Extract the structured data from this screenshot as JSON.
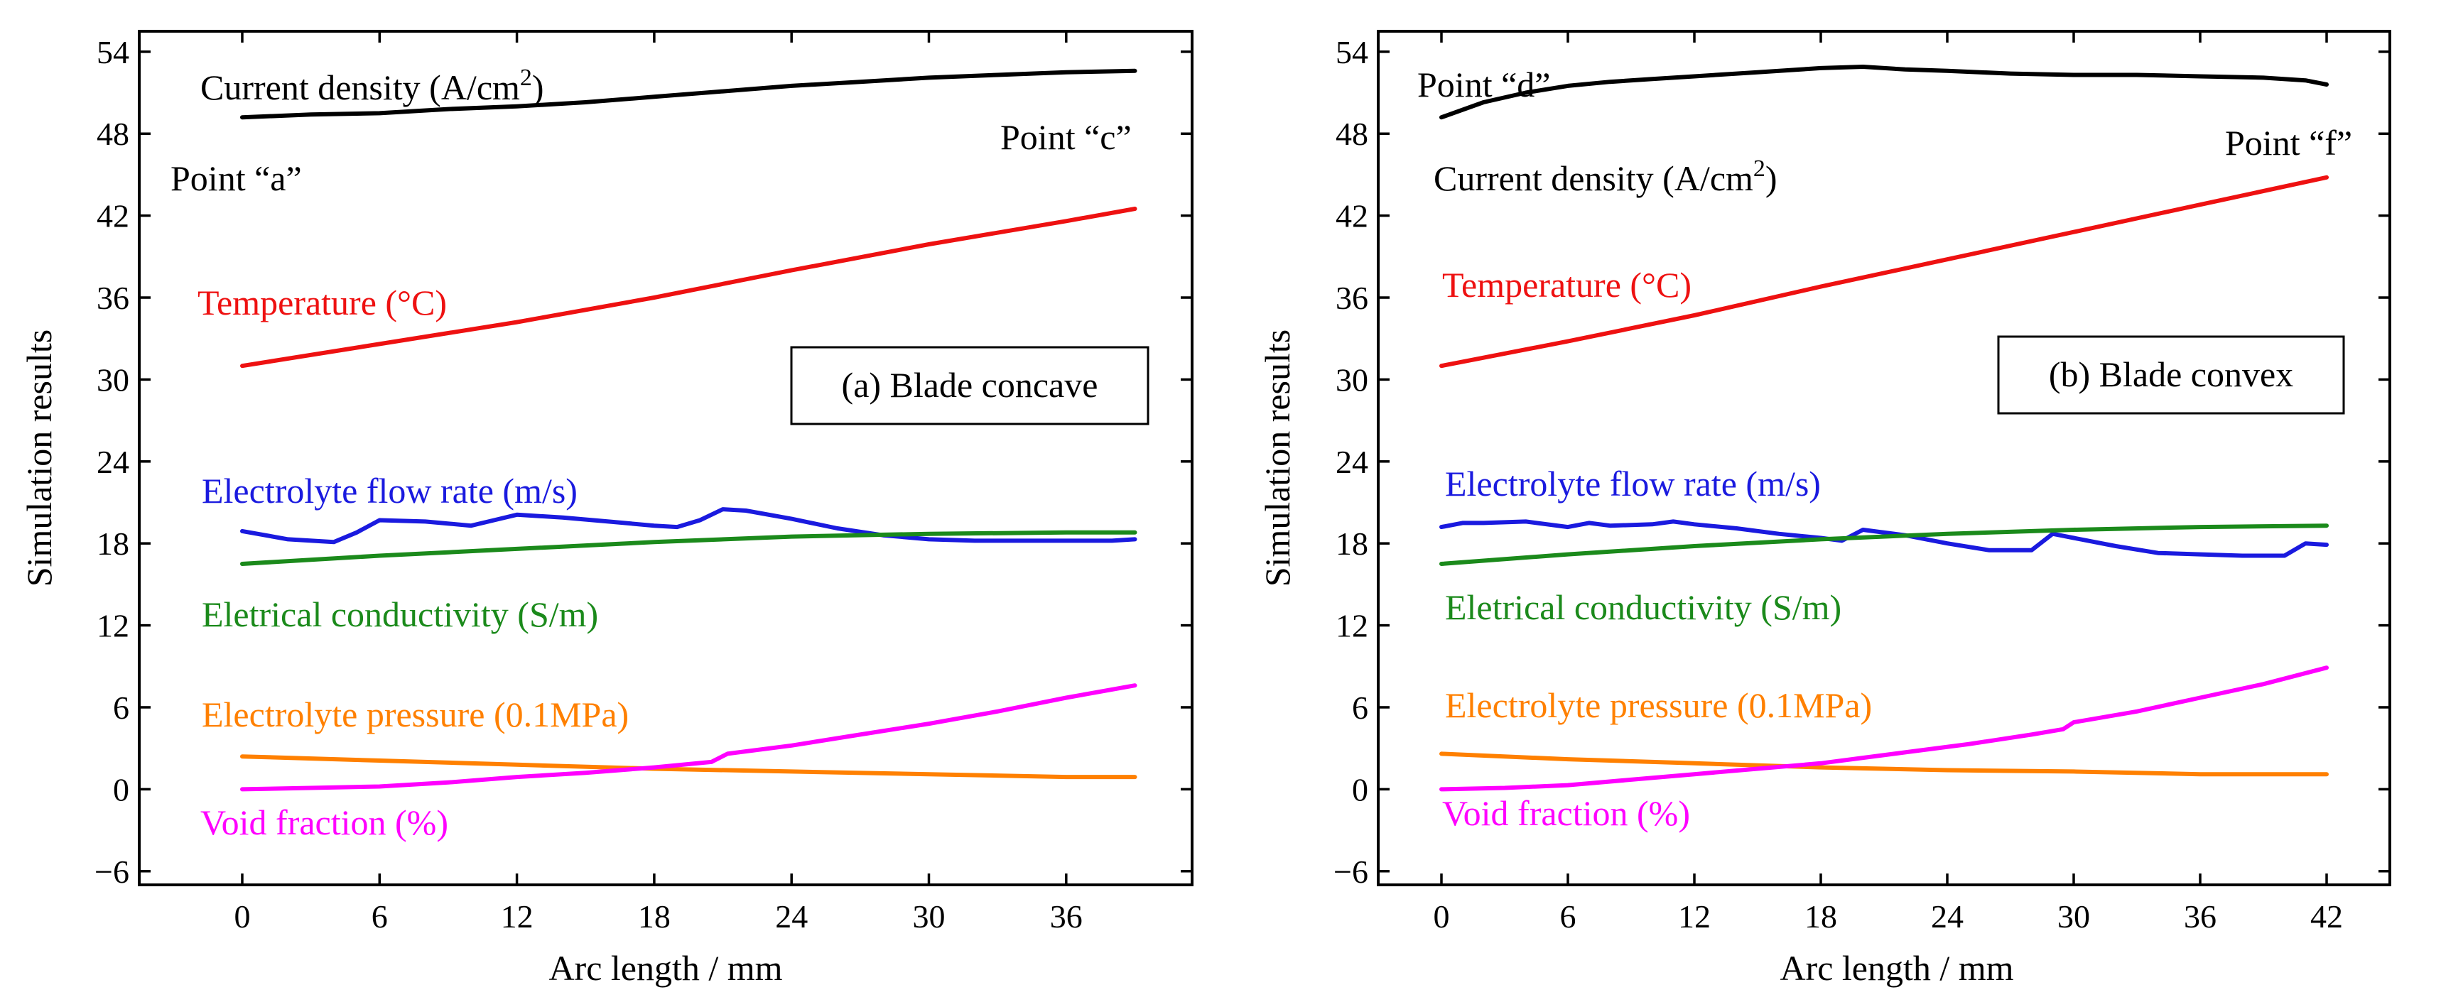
{
  "colors": {
    "current": "#000000",
    "temperature": "#ee1111",
    "flow": "#1a1adf",
    "conductivity": "#1b8a1b",
    "pressure": "#ff8000",
    "void": "#ff00ff"
  },
  "chart_data": [
    {
      "type": "line",
      "title": "(a) Blade concave",
      "xlabel": "Arc length / mm",
      "ylabel": "Simulation results",
      "xlim": [
        -4.5,
        41.5
      ],
      "ylim": [
        -7,
        55.5
      ],
      "xticks": [
        0,
        6,
        12,
        18,
        24,
        30,
        36
      ],
      "xtick_labels": [
        "0",
        "6",
        "12",
        "18",
        "24",
        "30",
        "36"
      ],
      "yticks": [
        -6,
        0,
        6,
        12,
        18,
        24,
        30,
        36,
        42,
        48,
        54
      ],
      "ytick_labels": [
        "−6",
        "0",
        "6",
        "12",
        "18",
        "24",
        "30",
        "36",
        "42",
        "48",
        "54"
      ],
      "grid": false,
      "series": [
        {
          "name": "Current density (A/cm2)",
          "color_key": "current",
          "x": [
            0,
            3,
            6,
            9,
            12,
            15,
            18,
            21,
            24,
            27,
            30,
            33,
            36,
            39
          ],
          "y": [
            49.2,
            49.4,
            49.5,
            49.8,
            50.0,
            50.3,
            50.7,
            51.1,
            51.5,
            51.8,
            52.1,
            52.3,
            52.5,
            52.6
          ]
        },
        {
          "name": "Temperature (°C)",
          "color_key": "temperature",
          "x": [
            0,
            6,
            12,
            18,
            24,
            30,
            36,
            39
          ],
          "y": [
            31.0,
            32.6,
            34.2,
            36.0,
            38.0,
            39.9,
            41.6,
            42.5
          ]
        },
        {
          "name": "Electrolyte flow rate (m/s)",
          "color_key": "flow",
          "x": [
            0,
            2,
            4,
            5,
            6,
            8,
            10,
            11,
            12,
            14,
            16,
            18,
            19,
            20,
            21,
            22,
            24,
            26,
            28,
            30,
            32,
            34,
            36,
            38,
            39
          ],
          "y": [
            18.9,
            18.3,
            18.1,
            18.8,
            19.7,
            19.6,
            19.3,
            19.7,
            20.1,
            19.9,
            19.6,
            19.3,
            19.2,
            19.7,
            20.5,
            20.4,
            19.8,
            19.1,
            18.6,
            18.3,
            18.2,
            18.2,
            18.2,
            18.2,
            18.3
          ]
        },
        {
          "name": "Eletrical conductivity (S/m)",
          "color_key": "conductivity",
          "x": [
            0,
            6,
            12,
            18,
            24,
            30,
            36,
            39
          ],
          "y": [
            16.5,
            17.1,
            17.6,
            18.1,
            18.5,
            18.7,
            18.8,
            18.8
          ]
        },
        {
          "name": "Electrolyte pressure (0.1MPa)",
          "color_key": "pressure",
          "x": [
            0,
            6,
            12,
            18,
            24,
            30,
            36,
            39
          ],
          "y": [
            2.4,
            2.1,
            1.8,
            1.5,
            1.3,
            1.1,
            0.9,
            0.9
          ]
        },
        {
          "name": "Void fraction (%)",
          "color_key": "void",
          "x": [
            0,
            3,
            6,
            9,
            12,
            15,
            18,
            20.5,
            21.2,
            24,
            27,
            30,
            33,
            36,
            39
          ],
          "y": [
            0.0,
            0.1,
            0.2,
            0.5,
            0.9,
            1.2,
            1.6,
            2.0,
            2.6,
            3.2,
            4.0,
            4.8,
            5.7,
            6.7,
            7.6
          ]
        }
      ],
      "annotations": {
        "current_label": "Current density (A/cm",
        "current_sup": "2",
        "current_close": ")",
        "point_start": "Point “a”",
        "point_end": "Point “c”",
        "temperature": "Temperature (°C)",
        "flow": "Electrolyte flow rate (m/s)",
        "conductivity": "Eletrical conductivity (S/m)",
        "pressure": "Electrolyte pressure (0.1MPa)",
        "void": "Void fraction (%)"
      }
    },
    {
      "type": "line",
      "title": "(b) Blade convex",
      "xlabel": "Arc length / mm",
      "ylabel": "Simulation results",
      "xlim": [
        -3.0,
        45.0
      ],
      "ylim": [
        -7,
        55.5
      ],
      "xticks": [
        0,
        6,
        12,
        18,
        24,
        30,
        36,
        42
      ],
      "xtick_labels": [
        "0",
        "6",
        "12",
        "18",
        "24",
        "30",
        "36",
        "42"
      ],
      "yticks": [
        -6,
        0,
        6,
        12,
        18,
        24,
        30,
        36,
        42,
        48,
        54
      ],
      "ytick_labels": [
        "−6",
        "0",
        "6",
        "12",
        "18",
        "24",
        "30",
        "36",
        "42",
        "48",
        "54"
      ],
      "grid": false,
      "series": [
        {
          "name": "Current density (A/cm2)",
          "color_key": "current",
          "x": [
            0,
            2,
            4,
            6,
            8,
            10,
            12,
            15,
            18,
            20,
            22,
            24,
            27,
            30,
            33,
            36,
            39,
            41,
            42
          ],
          "y": [
            49.2,
            50.3,
            51.0,
            51.5,
            51.8,
            52.0,
            52.2,
            52.5,
            52.8,
            52.9,
            52.7,
            52.6,
            52.4,
            52.3,
            52.3,
            52.2,
            52.1,
            51.9,
            51.6
          ]
        },
        {
          "name": "Temperature (°C)",
          "color_key": "temperature",
          "x": [
            0,
            6,
            12,
            18,
            24,
            30,
            36,
            42
          ],
          "y": [
            31.0,
            32.8,
            34.7,
            36.8,
            38.8,
            40.8,
            42.8,
            44.8
          ]
        },
        {
          "name": "Electrolyte flow rate (m/s)",
          "color_key": "flow",
          "x": [
            0,
            1,
            2,
            4,
            6,
            7,
            8,
            10,
            11,
            12,
            14,
            16,
            18,
            19,
            20,
            22,
            24,
            26,
            28,
            29,
            30,
            32,
            34,
            36,
            38,
            40,
            41,
            42
          ],
          "y": [
            19.2,
            19.5,
            19.5,
            19.6,
            19.2,
            19.5,
            19.3,
            19.4,
            19.6,
            19.4,
            19.1,
            18.7,
            18.4,
            18.2,
            19.0,
            18.6,
            18.0,
            17.5,
            17.5,
            18.7,
            18.4,
            17.8,
            17.3,
            17.2,
            17.1,
            17.1,
            18.0,
            17.9
          ]
        },
        {
          "name": "Eletrical conductivity (S/m)",
          "color_key": "conductivity",
          "x": [
            0,
            6,
            12,
            18,
            24,
            30,
            36,
            42
          ],
          "y": [
            16.5,
            17.2,
            17.8,
            18.3,
            18.7,
            19.0,
            19.2,
            19.3
          ]
        },
        {
          "name": "Electrolyte pressure (0.1MPa)",
          "color_key": "pressure",
          "x": [
            0,
            6,
            12,
            18,
            24,
            30,
            36,
            42
          ],
          "y": [
            2.6,
            2.2,
            1.9,
            1.6,
            1.4,
            1.3,
            1.1,
            1.1
          ]
        },
        {
          "name": "Void fraction (%)",
          "color_key": "void",
          "x": [
            0,
            3,
            6,
            9,
            12,
            15,
            18,
            20,
            22,
            25,
            28,
            29.5,
            30,
            33,
            36,
            39,
            42
          ],
          "y": [
            0.0,
            0.1,
            0.3,
            0.7,
            1.1,
            1.5,
            1.9,
            2.3,
            2.7,
            3.3,
            4.0,
            4.4,
            4.9,
            5.7,
            6.7,
            7.7,
            8.9
          ]
        }
      ],
      "annotations": {
        "current_label": "Current density (A/cm",
        "current_sup": "2",
        "current_close": ")",
        "point_start": "Point “d”",
        "point_end": "Point “f”",
        "temperature": "Temperature (°C)",
        "flow": "Electrolyte flow rate (m/s)",
        "conductivity": "Eletrical conductivity (S/m)",
        "pressure": "Electrolyte pressure (0.1MPa)",
        "void": "Void fraction (%)"
      }
    }
  ]
}
